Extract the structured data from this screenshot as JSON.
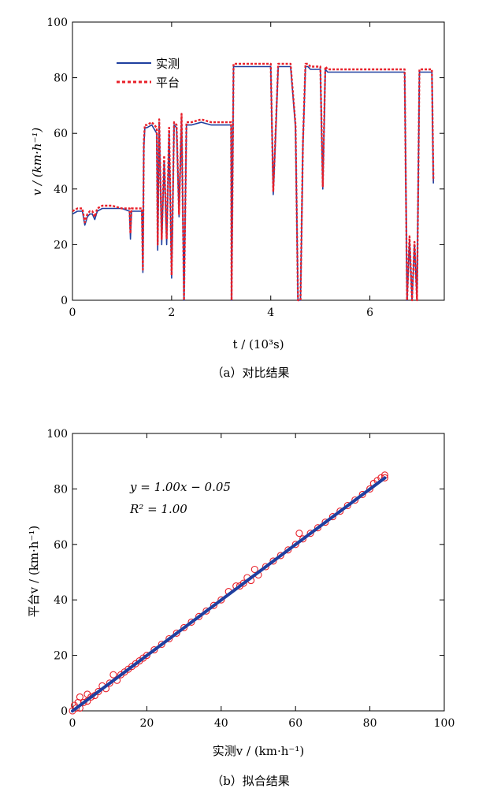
{
  "chart_data": [
    {
      "type": "line",
      "caption": "（a）对比结果",
      "xlabel": "t / (10³s)",
      "ylabel": "v / (km·h⁻¹)",
      "xlim": [
        0,
        7.5
      ],
      "ylim": [
        0,
        100
      ],
      "xticks": [
        "0",
        "2",
        "4",
        "6"
      ],
      "xtick_values": [
        0,
        2,
        4,
        6
      ],
      "yticks": [
        "0",
        "20",
        "40",
        "60",
        "80",
        "100"
      ],
      "ytick_values": [
        0,
        20,
        40,
        60,
        80,
        100
      ],
      "legend_position": "top-left",
      "grid": false,
      "series": [
        {
          "name": "实测",
          "color": "#1f3f9f",
          "style": "solid",
          "x": [
            0,
            0.1,
            0.2,
            0.25,
            0.3,
            0.35,
            0.4,
            0.45,
            0.5,
            0.6,
            0.8,
            1.0,
            1.15,
            1.17,
            1.19,
            1.3,
            1.4,
            1.42,
            1.44,
            1.46,
            1.5,
            1.6,
            1.7,
            1.72,
            1.75,
            1.8,
            1.85,
            1.9,
            1.95,
            2.0,
            2.05,
            2.1,
            2.15,
            2.2,
            2.25,
            2.3,
            2.4,
            2.6,
            2.8,
            3.0,
            3.2,
            3.21,
            3.25,
            3.4,
            3.6,
            3.8,
            4.0,
            4.05,
            4.1,
            4.15,
            4.2,
            4.3,
            4.4,
            4.5,
            4.55,
            4.6,
            4.65,
            4.7,
            4.75,
            4.8,
            4.9,
            5.0,
            5.05,
            5.1,
            5.15,
            5.3,
            5.6,
            5.9,
            6.2,
            6.5,
            6.7,
            6.75,
            6.8,
            6.85,
            6.9,
            6.95,
            7.0,
            7.1,
            7.2,
            7.25,
            7.28
          ],
          "y": [
            31,
            32,
            32,
            27,
            30,
            31,
            31,
            29,
            32,
            33,
            33,
            33,
            32,
            22,
            32,
            32,
            32,
            10,
            55,
            62,
            62,
            63,
            60,
            18,
            64,
            20,
            50,
            20,
            60,
            8,
            63,
            62,
            30,
            66,
            0,
            63,
            63,
            64,
            63,
            63,
            63,
            0,
            84,
            84,
            84,
            84,
            84,
            38,
            60,
            84,
            84,
            84,
            84,
            62,
            0,
            0,
            56,
            84,
            84,
            83,
            83,
            83,
            40,
            83,
            82,
            82,
            82,
            82,
            82,
            82,
            82,
            0,
            22,
            0,
            20,
            0,
            82,
            82,
            82,
            82,
            42
          ]
        },
        {
          "name": "平台",
          "color": "#e8202a",
          "style": "dashed",
          "x": [
            0,
            0.1,
            0.2,
            0.25,
            0.3,
            0.35,
            0.4,
            0.45,
            0.5,
            0.6,
            0.8,
            1.0,
            1.15,
            1.17,
            1.19,
            1.3,
            1.4,
            1.42,
            1.44,
            1.46,
            1.5,
            1.6,
            1.7,
            1.72,
            1.75,
            1.8,
            1.85,
            1.9,
            1.95,
            2.0,
            2.05,
            2.1,
            2.15,
            2.2,
            2.25,
            2.3,
            2.4,
            2.6,
            2.8,
            3.0,
            3.2,
            3.21,
            3.25,
            3.4,
            3.6,
            3.8,
            4.0,
            4.05,
            4.1,
            4.15,
            4.2,
            4.3,
            4.4,
            4.5,
            4.55,
            4.6,
            4.65,
            4.7,
            4.75,
            4.8,
            4.9,
            5.0,
            5.05,
            5.1,
            5.15,
            5.3,
            5.6,
            5.9,
            6.2,
            6.5,
            6.7,
            6.75,
            6.8,
            6.85,
            6.9,
            6.95,
            7.0,
            7.1,
            7.2,
            7.25,
            7.28
          ],
          "y": [
            32,
            33,
            33,
            28,
            31,
            32,
            32,
            30,
            33,
            34,
            34,
            33,
            33,
            24,
            33,
            33,
            33,
            11,
            57,
            63,
            63,
            64,
            62,
            20,
            65,
            22,
            52,
            22,
            62,
            9,
            64,
            63,
            31,
            67,
            0,
            64,
            64,
            65,
            64,
            64,
            64,
            0,
            85,
            85,
            85,
            85,
            85,
            39,
            61,
            85,
            85,
            85,
            85,
            63,
            0,
            0,
            57,
            85,
            85,
            84,
            84,
            84,
            41,
            84,
            83,
            83,
            83,
            83,
            83,
            83,
            83,
            0,
            23,
            0,
            21,
            0,
            83,
            83,
            83,
            83,
            43
          ]
        }
      ]
    },
    {
      "type": "scatter",
      "caption": "（b）拟合结果",
      "xlabel": "实测v / (km·h⁻¹)",
      "ylabel": "平台v / (km·h⁻¹)",
      "xlim": [
        0,
        100
      ],
      "ylim": [
        0,
        100
      ],
      "xticks": [
        "0",
        "20",
        "40",
        "60",
        "80",
        "100"
      ],
      "xtick_values": [
        0,
        20,
        40,
        60,
        80,
        100
      ],
      "yticks": [
        "0",
        "20",
        "40",
        "60",
        "80",
        "100"
      ],
      "ytick_values": [
        0,
        20,
        40,
        60,
        80,
        100
      ],
      "grid": false,
      "equation": "y = 1.00x − 0.05",
      "r_squared": "R² = 1.00",
      "fit": {
        "slope": 1.0,
        "intercept": -0.05,
        "x_range": [
          0,
          84
        ],
        "color": "#1f3f9f"
      },
      "points_color": "#e8202a",
      "points": [
        [
          0,
          0
        ],
        [
          0.5,
          2
        ],
        [
          1,
          1
        ],
        [
          1.5,
          3
        ],
        [
          2,
          1
        ],
        [
          2,
          5
        ],
        [
          3,
          3
        ],
        [
          4,
          3.5
        ],
        [
          4,
          6
        ],
        [
          5,
          5
        ],
        [
          6,
          5.5
        ],
        [
          7,
          7
        ],
        [
          8,
          9
        ],
        [
          9,
          8
        ],
        [
          10,
          10
        ],
        [
          11,
          13
        ],
        [
          12,
          11
        ],
        [
          13,
          13
        ],
        [
          14,
          14
        ],
        [
          15,
          15
        ],
        [
          16,
          16
        ],
        [
          17,
          17
        ],
        [
          18,
          18
        ],
        [
          19,
          19
        ],
        [
          20,
          20
        ],
        [
          22,
          22
        ],
        [
          24,
          24
        ],
        [
          26,
          26
        ],
        [
          28,
          28
        ],
        [
          30,
          30
        ],
        [
          32,
          32
        ],
        [
          34,
          34
        ],
        [
          36,
          36
        ],
        [
          38,
          38
        ],
        [
          40,
          40
        ],
        [
          42,
          43
        ],
        [
          44,
          45
        ],
        [
          45,
          45
        ],
        [
          46,
          46
        ],
        [
          47,
          48
        ],
        [
          48,
          47
        ],
        [
          49,
          51
        ],
        [
          50,
          49
        ],
        [
          52,
          52
        ],
        [
          54,
          54
        ],
        [
          56,
          56
        ],
        [
          58,
          58
        ],
        [
          60,
          60
        ],
        [
          61,
          64
        ],
        [
          62,
          62
        ],
        [
          64,
          64
        ],
        [
          66,
          66
        ],
        [
          68,
          68
        ],
        [
          70,
          70
        ],
        [
          72,
          72
        ],
        [
          74,
          74
        ],
        [
          76,
          76
        ],
        [
          78,
          78
        ],
        [
          80,
          80
        ],
        [
          81,
          82
        ],
        [
          82,
          83
        ],
        [
          83,
          84
        ],
        [
          84,
          85
        ],
        [
          84,
          84
        ]
      ]
    }
  ]
}
